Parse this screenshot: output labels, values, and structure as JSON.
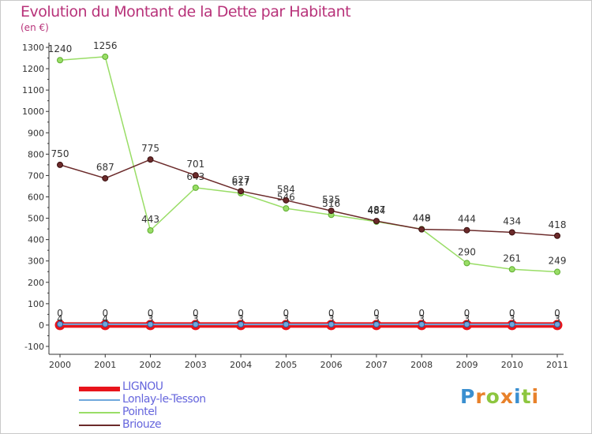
{
  "title": "Evolution du Montant de la Dette par Habitant",
  "unit": "(en €)",
  "logo": {
    "text": "Proxiti",
    "letters": [
      {
        "ch": "P",
        "color": "#3a8fd0"
      },
      {
        "ch": "r",
        "color": "#e8812a"
      },
      {
        "ch": "o",
        "color": "#8dc63f"
      },
      {
        "ch": "x",
        "color": "#e8812a"
      },
      {
        "ch": "i",
        "color": "#3a8fd0"
      },
      {
        "ch": "t",
        "color": "#8dc63f"
      },
      {
        "ch": "i",
        "color": "#e8812a"
      }
    ]
  },
  "chart_data": {
    "type": "line",
    "title": "Evolution du Montant de la Dette par Habitant",
    "ylabel": "(en €)",
    "xlabel": "",
    "x": [
      "2000",
      "2001",
      "2002",
      "2003",
      "2004",
      "2005",
      "2006",
      "2007",
      "2008",
      "2009",
      "2010",
      "2011"
    ],
    "ylim": [
      -100,
      1300
    ],
    "yticks": [
      -100,
      0,
      100,
      200,
      300,
      400,
      500,
      600,
      700,
      800,
      900,
      1000,
      1100,
      1200,
      1300
    ],
    "grid": false,
    "legend_position": "bottom-left",
    "series": [
      {
        "name": "LIGNOU",
        "color": "#e8141b",
        "values": [
          0,
          0,
          0,
          0,
          0,
          0,
          0,
          0,
          0,
          0,
          0,
          0
        ],
        "labels": [
          "0",
          "0",
          "0",
          "0",
          "0",
          "0",
          "0",
          "0",
          "0",
          "0",
          "0",
          "0"
        ]
      },
      {
        "name": "Lonlay-le-Tesson",
        "color": "#6fa8dc",
        "values": [
          4,
          4,
          3,
          3,
          3,
          3,
          3,
          3,
          3,
          3,
          3,
          3
        ],
        "labels": [
          "4",
          "4",
          "3",
          "3",
          "3",
          "3",
          "3",
          "3",
          "3",
          "3",
          "3",
          "3"
        ]
      },
      {
        "name": "Pointel",
        "color": "#99dd66",
        "values": [
          1240,
          1256,
          443,
          643,
          617,
          546,
          516,
          484,
          449,
          290,
          261,
          249
        ],
        "labels": [
          "1240",
          "1256",
          "443",
          "643",
          "617",
          "546",
          "516",
          "484",
          "449",
          "290",
          "261",
          "249"
        ]
      },
      {
        "name": "Briouze",
        "color": "#6b2a2a",
        "values": [
          750,
          687,
          775,
          701,
          627,
          584,
          535,
          487,
          448,
          444,
          434,
          418
        ],
        "labels": [
          "750",
          "687",
          "775",
          "701",
          "627",
          "584",
          "535",
          "487",
          "448",
          "444",
          "434",
          "418"
        ]
      }
    ]
  }
}
